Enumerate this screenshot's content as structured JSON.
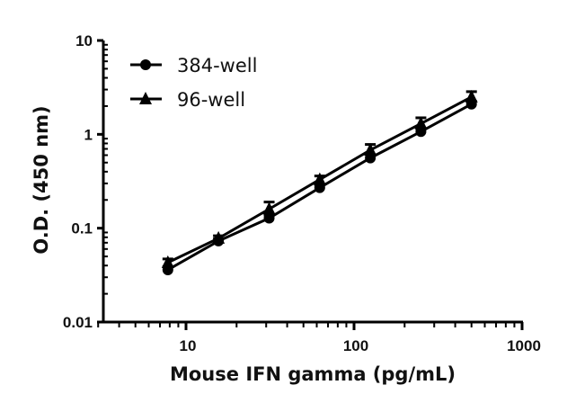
{
  "chart_data": {
    "type": "line",
    "title": "",
    "xlabel": "Mouse IFN gamma (pg/mL)",
    "ylabel": "O.D. (450 nm)",
    "xscale": "log",
    "yscale": "log",
    "xlim": [
      2.5,
      1000
    ],
    "ylim": [
      0.01,
      10
    ],
    "xticks": [
      "10",
      "100",
      "1000"
    ],
    "yticks": [
      "0.01",
      "0.1",
      "1",
      "10"
    ],
    "grid": false,
    "legend_position": "top-left",
    "x": [
      7.8,
      15.6,
      31.25,
      62.5,
      125,
      250,
      500
    ],
    "series": [
      {
        "name": "384-well",
        "marker": "circle",
        "values": [
          0.036,
          0.073,
          0.128,
          0.27,
          0.56,
          1.07,
          2.1
        ],
        "error": [
          0.003,
          0.004,
          0.01,
          0.02,
          0.05,
          0.08,
          0.15
        ]
      },
      {
        "name": "96-well",
        "marker": "triangle",
        "values": [
          0.043,
          0.078,
          0.16,
          0.33,
          0.68,
          1.3,
          2.5
        ],
        "error": [
          0.004,
          0.005,
          0.03,
          0.03,
          0.1,
          0.2,
          0.35
        ]
      }
    ]
  },
  "legend": {
    "items": [
      "384-well",
      "96-well"
    ]
  }
}
